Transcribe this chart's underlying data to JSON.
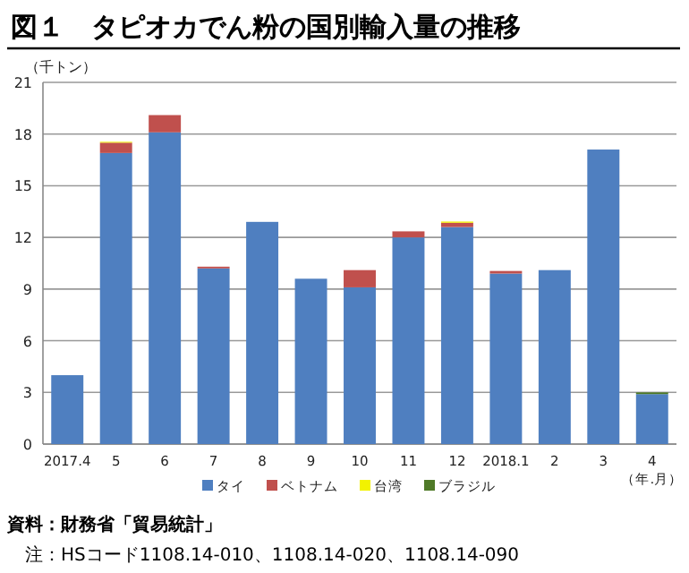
{
  "chart_data": {
    "type": "bar",
    "stacked": true,
    "title": "図１　タピオカでん粉の国別輸入量の推移",
    "ylabel": "（千トン）",
    "xlabel": "（年.月）",
    "categories": [
      "2017.4",
      "5",
      "6",
      "7",
      "8",
      "9",
      "10",
      "11",
      "12",
      "2018.1",
      "2",
      "3",
      "4"
    ],
    "series": [
      {
        "name": "タイ",
        "color": "#4f7fc0",
        "values": [
          4.0,
          16.9,
          18.1,
          10.2,
          12.9,
          9.6,
          9.1,
          12.0,
          12.6,
          9.9,
          10.1,
          17.1,
          2.9
        ]
      },
      {
        "name": "ベトナム",
        "color": "#c0504d",
        "values": [
          0,
          0.6,
          1.0,
          0.1,
          0,
          0,
          1.0,
          0.35,
          0.25,
          0.15,
          0,
          0,
          0
        ]
      },
      {
        "name": "台湾",
        "color": "#f2f200",
        "values": [
          0,
          0.05,
          0,
          0,
          0,
          0,
          0,
          0,
          0.07,
          0,
          0,
          0,
          0
        ]
      },
      {
        "name": "ブラジル",
        "color": "#4f7a28",
        "values": [
          0,
          0,
          0,
          0,
          0,
          0,
          0,
          0,
          0,
          0,
          0,
          0,
          0.1
        ]
      }
    ],
    "ylim": [
      0,
      21
    ],
    "yticks": [
      0,
      3,
      6,
      9,
      12,
      15,
      18,
      21
    ],
    "grid": "y",
    "legend": "bottom",
    "annotations": [
      "資料：財務省「貿易統計」",
      "注：HSコード1108.14-010、1108.14-020、1108.14-090"
    ]
  }
}
